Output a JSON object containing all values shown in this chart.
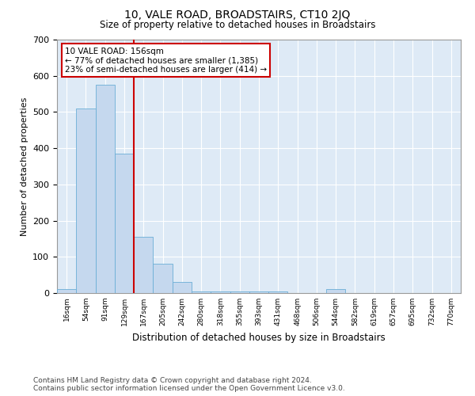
{
  "title": "10, VALE ROAD, BROADSTAIRS, CT10 2JQ",
  "subtitle": "Size of property relative to detached houses in Broadstairs",
  "xlabel": "Distribution of detached houses by size in Broadstairs",
  "ylabel": "Number of detached properties",
  "bar_color": "#c5d8ee",
  "bar_edge_color": "#6baed6",
  "grid_color": "#c8d8e8",
  "background_color": "#deeaf6",
  "categories": [
    "16sqm",
    "54sqm",
    "91sqm",
    "129sqm",
    "167sqm",
    "205sqm",
    "242sqm",
    "280sqm",
    "318sqm",
    "355sqm",
    "393sqm",
    "431sqm",
    "468sqm",
    "506sqm",
    "544sqm",
    "582sqm",
    "619sqm",
    "657sqm",
    "695sqm",
    "732sqm",
    "770sqm"
  ],
  "values": [
    10,
    510,
    575,
    385,
    155,
    80,
    30,
    5,
    5,
    5,
    5,
    5,
    0,
    0,
    10,
    0,
    0,
    0,
    0,
    0,
    0
  ],
  "ylim": [
    0,
    700
  ],
  "yticks": [
    0,
    100,
    200,
    300,
    400,
    500,
    600,
    700
  ],
  "annotation_text": "10 VALE ROAD: 156sqm\n← 77% of detached houses are smaller (1,385)\n23% of semi-detached houses are larger (414) →",
  "annotation_box_color": "#ffffff",
  "annotation_border_color": "#cc0000",
  "red_line_color": "#cc0000",
  "footer_line1": "Contains HM Land Registry data © Crown copyright and database right 2024.",
  "footer_line2": "Contains public sector information licensed under the Open Government Licence v3.0."
}
